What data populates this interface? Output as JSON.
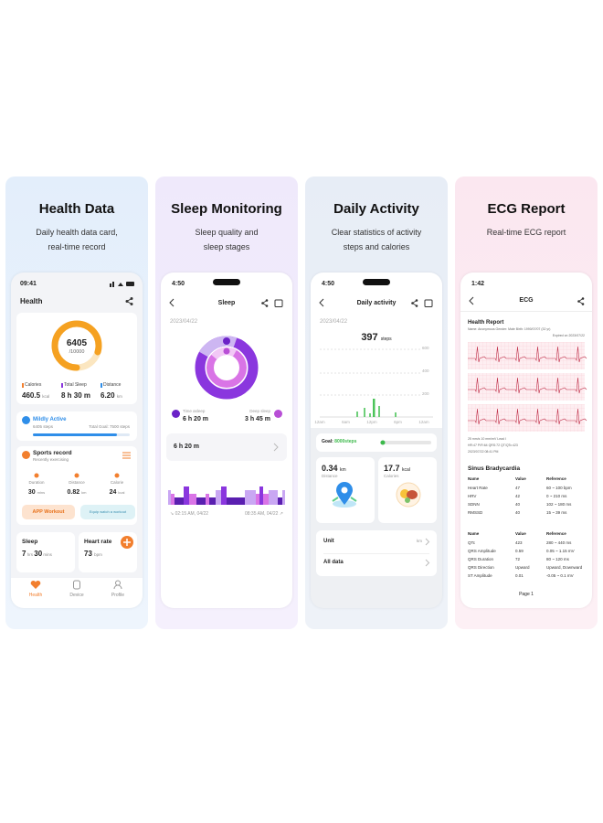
{
  "panels": [
    {
      "title": "Health Data",
      "subtitle": [
        "Daily health data card,",
        "real-time record"
      ],
      "screen": {
        "time": "09:41",
        "header": "Health",
        "steps": "6405",
        "goal": "/10000",
        "stats": [
          {
            "label": "Calories",
            "value": "460.5",
            "unit": "kcal"
          },
          {
            "label": "Total Sleep",
            "value": "8 h 30 m"
          },
          {
            "label": "Distance",
            "value": "6.20",
            "unit": "km"
          }
        ],
        "activity": {
          "level": "Mildly Active",
          "steps": "6405 steps",
          "total": "Total Goal: 7500 steps"
        },
        "sports": {
          "title": "Sports record",
          "subtitle": "Recently exercising",
          "items": [
            {
              "label": "Duration",
              "value": "30",
              "unit": "mins"
            },
            {
              "label": "Distance",
              "value": "0.82",
              "unit": "km"
            },
            {
              "label": "Calorie",
              "value": "24",
              "unit": "kcal"
            }
          ]
        },
        "buttons": [
          "APP Workout",
          "Equip watch a workout"
        ],
        "sleep": {
          "label": "Sleep",
          "value": "7",
          "unit": "hrs",
          "value2": "30",
          "unit2": "mins"
        },
        "heart": {
          "label": "Heart rate",
          "value": "73",
          "unit": "bpm"
        },
        "nav": [
          "Health",
          "Device",
          "Profile"
        ]
      }
    },
    {
      "title": "Sleep Monitoring",
      "subtitle": [
        "Sleep quality and",
        "sleep stages"
      ],
      "screen": {
        "time": "4:50",
        "header": "Sleep",
        "date": "2023/04/22",
        "legend": [
          {
            "label": "Time asleep",
            "value": "6 h 20 m"
          },
          {
            "label": "Deep sleep",
            "value": "3 h 45 m"
          }
        ],
        "summary": "6 h 20 m",
        "start": "02:15 AM, 04/22",
        "end": "08:35 AM, 04/22"
      }
    },
    {
      "title": "Daily Activity",
      "subtitle": [
        "Clear statistics of activity",
        "steps and calories"
      ],
      "screen": {
        "time": "4:50",
        "header": "Daily activity",
        "date": "2023/04/22",
        "steps": "397",
        "steps_unit": "steps",
        "y_labels": [
          "600",
          "400",
          "200"
        ],
        "x_labels": [
          "12am",
          "6am",
          "12pm",
          "6pm",
          "12am"
        ],
        "goal_label": "Goal:",
        "goal_value": "8000steps",
        "cards": [
          {
            "value": "0.34",
            "unit": "km",
            "label": "Distance"
          },
          {
            "value": "17.7",
            "unit": "kcal",
            "label": "Calories"
          }
        ],
        "list": [
          {
            "label": "Unit",
            "value": "km"
          },
          {
            "label": "All data"
          }
        ]
      }
    },
    {
      "title": "ECG Report",
      "subtitle": [
        "Real-time ECG report"
      ],
      "screen": {
        "time": "1:42",
        "header": "ECG",
        "report_title": "Health Report",
        "info": "Name: Anonymous   Gender: Male   Birth: 1990/07/07 (32 yr)",
        "expired": "Expired on 2023/07/22",
        "notes": [
          "25 mm/s  10 mm/mV  Lead I",
          "HR:47 P/R:64 QRS:72 QT/QTc:423",
          "2023/07/22 08:41 PM"
        ],
        "diagnosis": "Sinus Bradycardia",
        "tables": [
          {
            "header": [
              "Name",
              "Value",
              "Reference"
            ],
            "rows": [
              [
                "Heart Rate",
                "47",
                "60 ~ 100 bpm"
              ],
              [
                "HRV",
                "42",
                "0 ~ 210 ms"
              ],
              [
                "SDNN",
                "40",
                "102 ~ 180 ms"
              ],
              [
                "RMSSD",
                "40",
                "15 ~ 39 ms"
              ]
            ]
          },
          {
            "header": [
              "Name",
              "Value",
              "Reference"
            ],
            "rows": [
              [
                "QTc",
                "423",
                "280 ~ 440 ms"
              ],
              [
                "QRS Amplitude",
                "0.59",
                "0.05 ~ 1.15 mV"
              ],
              [
                "QRS Duration",
                "72",
                "80 ~ 120 ms"
              ],
              [
                "QRS Direction",
                "Upward",
                "Upward, Downward"
              ],
              [
                "ST Amplitude",
                "0.01",
                "-0.05 ~ 0.1 mV"
              ]
            ]
          }
        ],
        "page": "Page 1"
      }
    }
  ]
}
